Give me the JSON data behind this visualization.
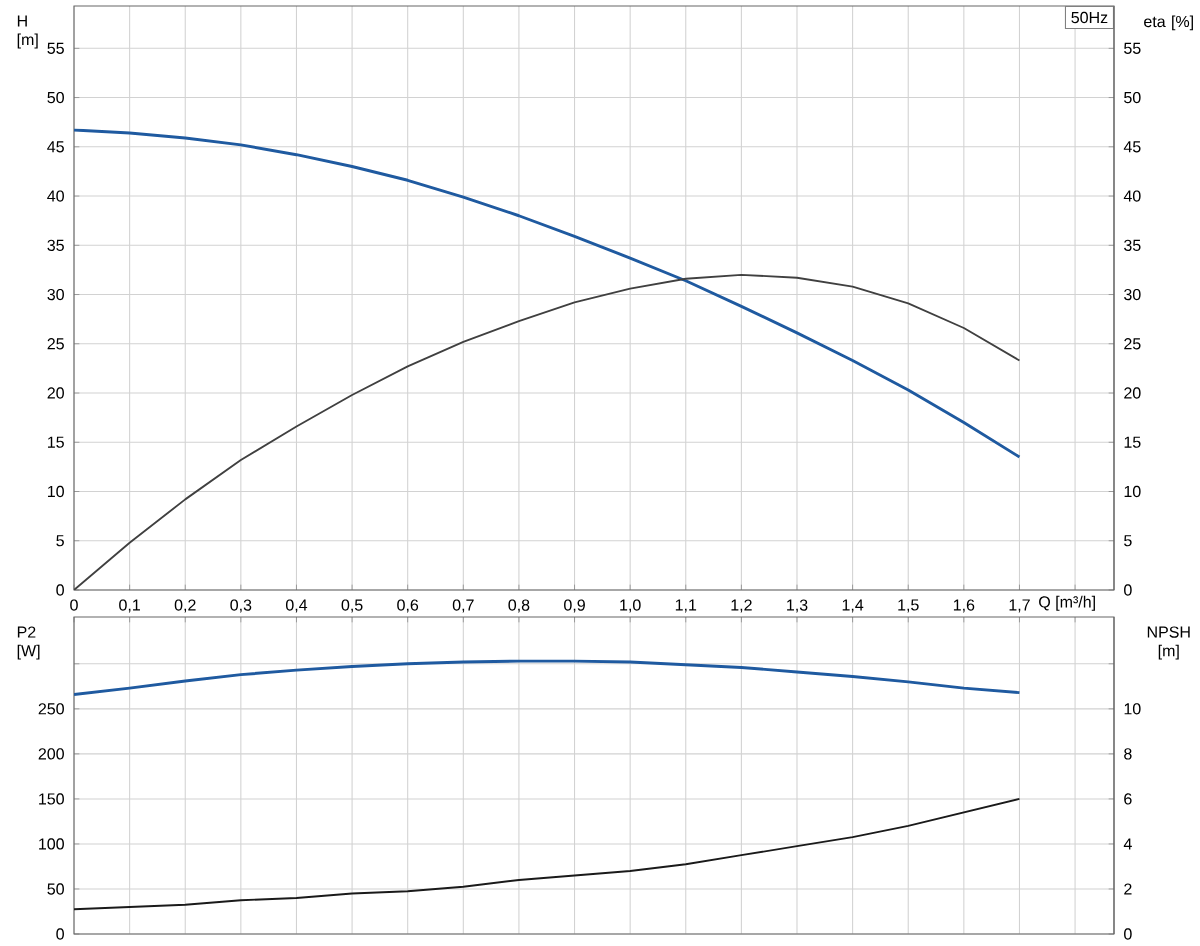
{
  "chart_data": [
    {
      "type": "line",
      "xlabel": "Q [m³/h]",
      "ylabel": "H [m]",
      "y2label": "eta [%]",
      "annotations": [
        "50Hz"
      ],
      "grid": true,
      "x": [
        0,
        0.1,
        0.2,
        0.3,
        0.4,
        0.5,
        0.6,
        0.7,
        0.8,
        0.9,
        1.0,
        1.1,
        1.2,
        1.3,
        1.4,
        1.5,
        1.6,
        1.7
      ],
      "xlim": [
        0,
        1.87
      ],
      "xticks": [
        0,
        {
          "value": 0.1,
          "label": "0,1"
        },
        {
          "value": 0.2,
          "label": "0,2"
        },
        {
          "value": 0.3,
          "label": "0,3"
        },
        {
          "value": 0.4,
          "label": "0,4"
        },
        {
          "value": 0.5,
          "label": "0,5"
        },
        {
          "value": 0.6,
          "label": "0,6"
        },
        {
          "value": 0.7,
          "label": "0,7"
        },
        {
          "value": 0.8,
          "label": "0,8"
        },
        {
          "value": 0.9,
          "label": "0,9"
        },
        {
          "value": 1.0,
          "label": "1,0"
        },
        {
          "value": 1.1,
          "label": "1,1"
        },
        {
          "value": 1.2,
          "label": "1,2"
        },
        {
          "value": 1.3,
          "label": "1,3"
        },
        {
          "value": 1.4,
          "label": "1,4"
        },
        {
          "value": 1.5,
          "label": "1,5"
        },
        {
          "value": 1.6,
          "label": "1,6"
        },
        {
          "value": 1.7,
          "label": "1,7"
        },
        {
          "value": 1.8,
          "label": null
        }
      ],
      "ylim": [
        0,
        59.3
      ],
      "yticks": [
        0,
        5,
        10,
        15,
        20,
        25,
        30,
        35,
        40,
        45,
        50,
        55
      ],
      "y2lim": [
        0,
        59.3
      ],
      "y2ticks": [
        0,
        5,
        10,
        15,
        20,
        25,
        30,
        35,
        40,
        45,
        50,
        55
      ],
      "series": [
        {
          "color": "#1f5aa0",
          "values": [
            46.7,
            46.4,
            45.9,
            45.2,
            44.2,
            43.0,
            41.6,
            39.9,
            38.0,
            35.9,
            33.7,
            31.4,
            28.8,
            26.1,
            23.3,
            20.3,
            17.0,
            13.5
          ]
        },
        {
          "color": "#404040",
          "axis": "y2",
          "values": [
            0,
            4.8,
            9.2,
            13.2,
            16.6,
            19.8,
            22.7,
            25.2,
            27.3,
            29.2,
            30.6,
            31.6,
            32.0,
            31.7,
            30.8,
            29.1,
            26.6,
            23.3
          ]
        }
      ]
    },
    {
      "type": "line",
      "ylabel": "P2 [W]",
      "y2label": "NPSH [m]",
      "grid": true,
      "tick_labels": "y",
      "x": [
        0,
        0.1,
        0.2,
        0.3,
        0.4,
        0.5,
        0.6,
        0.7,
        0.8,
        0.9,
        1.0,
        1.1,
        1.2,
        1.3,
        1.4,
        1.5,
        1.6,
        1.7
      ],
      "xlim": [
        0,
        1.87
      ],
      "xticks": [
        0,
        0.1,
        0.2,
        0.3,
        0.4,
        0.5,
        0.6,
        0.7,
        0.8,
        0.9,
        1.0,
        1.1,
        1.2,
        1.3,
        1.4,
        1.5,
        1.6,
        1.7,
        1.8
      ],
      "ylim": [
        0,
        352
      ],
      "yticks": [
        0,
        50,
        100,
        150,
        200,
        250,
        {
          "value": 300,
          "label": null
        }
      ],
      "y2lim": [
        0,
        14.08
      ],
      "y2ticks": [
        0,
        2,
        4,
        6,
        8,
        10,
        {
          "value": 12,
          "label": null
        }
      ],
      "series": [
        {
          "color": "#1f5aa0",
          "values": [
            266,
            273,
            281,
            288,
            293,
            297,
            300,
            302,
            303,
            303,
            302,
            299,
            296,
            291,
            286,
            280,
            273,
            268
          ]
        },
        {
          "color": "#1a1a1a",
          "axis": "y2",
          "values": [
            1.1,
            1.2,
            1.3,
            1.5,
            1.6,
            1.8,
            1.9,
            2.1,
            2.4,
            2.6,
            2.8,
            3.1,
            3.5,
            3.9,
            4.3,
            4.8,
            5.4,
            6.0
          ]
        }
      ]
    }
  ]
}
